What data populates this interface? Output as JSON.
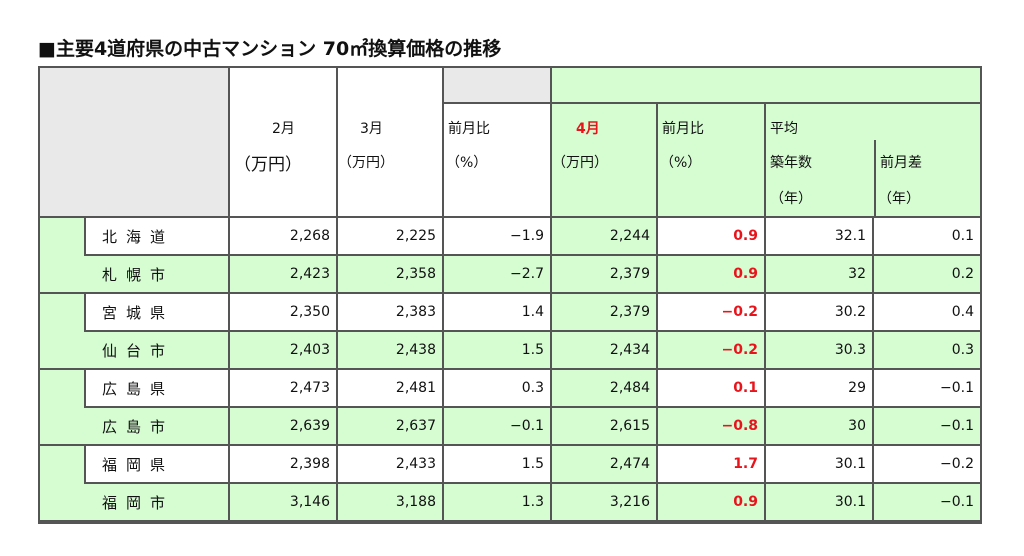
{
  "title": "■主要4道府県の中古マンション 70㎡換算価格の推移",
  "headers": {
    "feb": "2月",
    "feb_unit": "（万円）",
    "mar": "3月",
    "mar_unit": "（万円）",
    "mom1": "前月比",
    "mom1_unit": "（%）",
    "apr": "4月",
    "apr_unit": "（万円）",
    "mom2": "前月比",
    "mom2_unit": "（%）",
    "avg": "平均",
    "age": "築年数",
    "age_unit": "（年）",
    "diff": "前月差",
    "diff_unit": "（年）"
  },
  "rows": [
    {
      "name": "北海道",
      "feb": "2,268",
      "mar": "2,225",
      "mom1": "−1.9",
      "apr": "2,244",
      "mom2": "0.9",
      "age": "32.1",
      "diff": "0.1"
    },
    {
      "name": "札幌市",
      "feb": "2,423",
      "mar": "2,358",
      "mom1": "−2.7",
      "apr": "2,379",
      "mom2": "0.9",
      "age": "32",
      "diff": "0.2"
    },
    {
      "name": "宮城県",
      "feb": "2,350",
      "mar": "2,383",
      "mom1": "1.4",
      "apr": "2,379",
      "mom2": "−0.2",
      "age": "30.2",
      "diff": "0.4"
    },
    {
      "name": "仙台市",
      "feb": "2,403",
      "mar": "2,438",
      "mom1": "1.5",
      "apr": "2,434",
      "mom2": "−0.2",
      "age": "30.3",
      "diff": "0.3"
    },
    {
      "name": "広島県",
      "feb": "2,473",
      "mar": "2,481",
      "mom1": "0.3",
      "apr": "2,484",
      "mom2": "0.1",
      "age": "29",
      "diff": "−0.1"
    },
    {
      "name": "広島市",
      "feb": "2,639",
      "mar": "2,637",
      "mom1": "−0.1",
      "apr": "2,615",
      "mom2": "−0.8",
      "age": "30",
      "diff": "−0.1"
    },
    {
      "name": "福岡県",
      "feb": "2,398",
      "mar": "2,433",
      "mom1": "1.5",
      "apr": "2,474",
      "mom2": "1.7",
      "age": "30.1",
      "diff": "−0.2"
    },
    {
      "name": "福岡市",
      "feb": "3,146",
      "mar": "3,188",
      "mom1": "1.3",
      "apr": "3,216",
      "mom2": "0.9",
      "age": "30.1",
      "diff": "−0.1"
    }
  ]
}
